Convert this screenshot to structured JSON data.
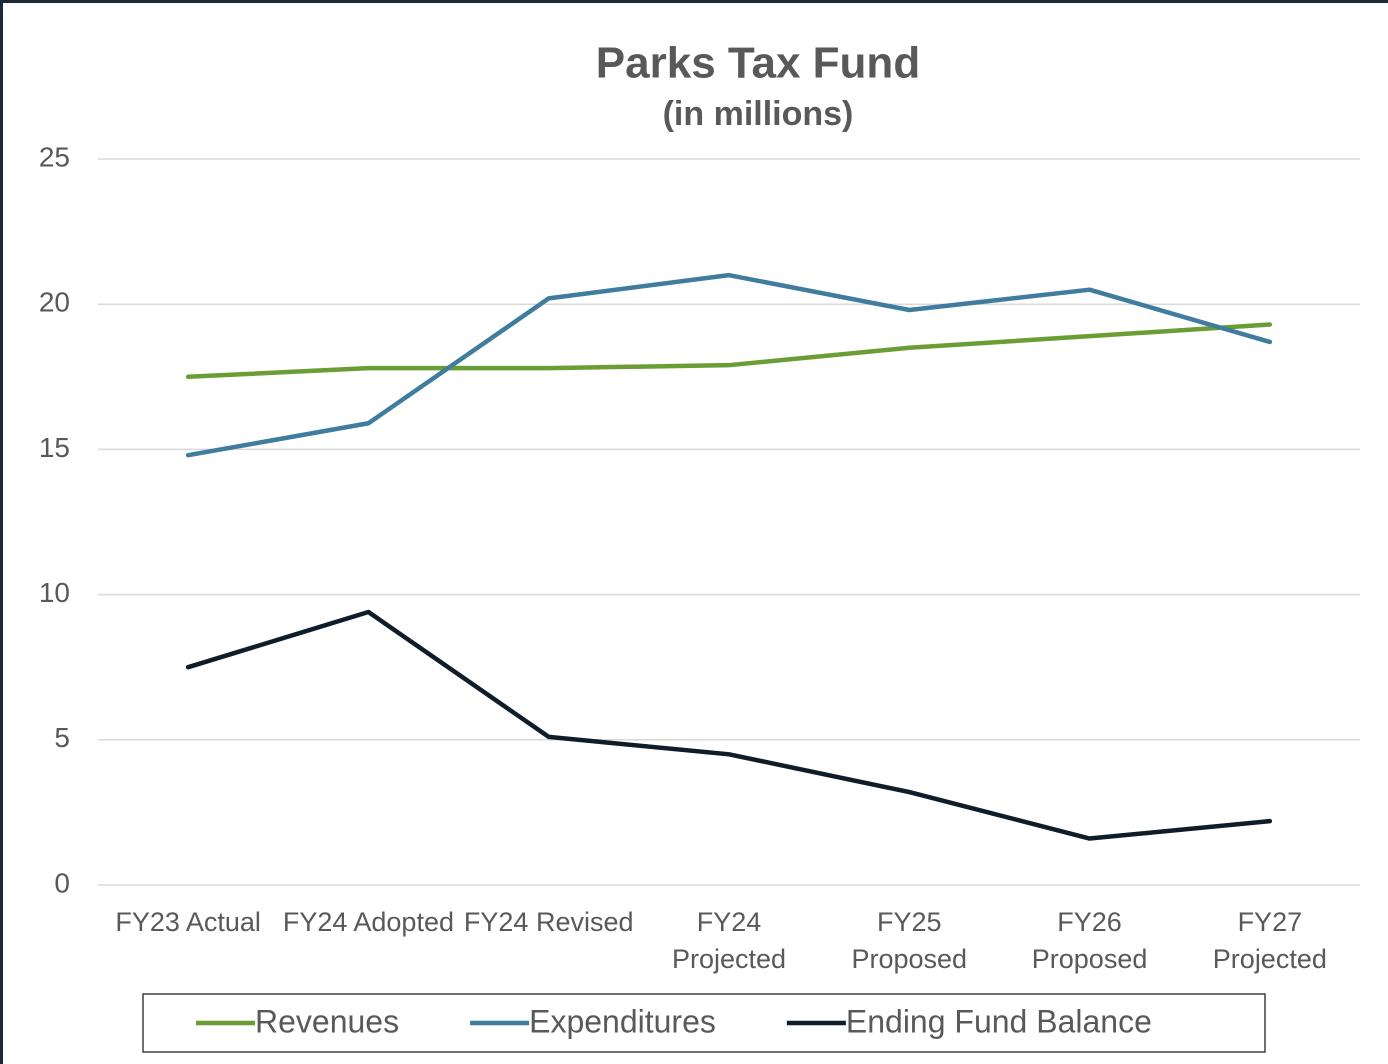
{
  "chart_data": {
    "type": "line",
    "title": "Parks Tax Fund",
    "subtitle": "(in millions)",
    "categories": [
      "FY23 Actual",
      "FY24 Adopted",
      "FY24 Revised",
      "FY24 Projected",
      "FY25 Proposed",
      "FY26 Proposed",
      "FY27 Projected"
    ],
    "series": [
      {
        "name": "Revenues",
        "color": "#6a9e35",
        "values": [
          17.5,
          17.8,
          17.8,
          17.9,
          18.5,
          18.9,
          19.3
        ]
      },
      {
        "name": "Expenditures",
        "color": "#3f7c9d",
        "values": [
          14.8,
          15.9,
          20.2,
          21.0,
          19.8,
          20.5,
          18.7
        ]
      },
      {
        "name": "Ending Fund Balance",
        "color": "#0f1c2a",
        "values": [
          7.5,
          9.4,
          5.1,
          4.5,
          3.2,
          1.6,
          2.2
        ]
      }
    ],
    "ylim": [
      0,
      25
    ],
    "yticks": [
      0,
      5,
      10,
      15,
      20,
      25
    ],
    "grid": true,
    "legend": "bottom"
  }
}
